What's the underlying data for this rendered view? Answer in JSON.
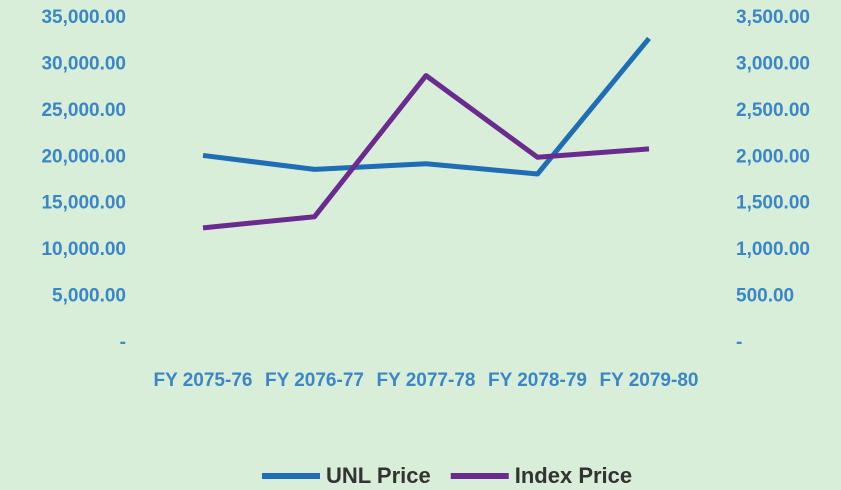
{
  "chart_data": {
    "type": "line",
    "categories": [
      "FY 2075-76",
      "FY 2076-77",
      "FY 2077-78",
      "FY 2078-79",
      "FY 2079-80"
    ],
    "series": [
      {
        "name": "UNL Price",
        "color": "#1f6db4",
        "values": [
          20200,
          18700,
          19300,
          18200,
          32800
        ]
      },
      {
        "name": "Index Price",
        "color": "#6a2a8e",
        "axis": "y2",
        "values": [
          1240,
          1360,
          2880,
          2000,
          2090
        ]
      }
    ],
    "ylim": [
      0,
      35000
    ],
    "yticks": [
      {
        "value": 0,
        "label": "-"
      },
      {
        "value": 5000,
        "label": "5,000.00"
      },
      {
        "value": 10000,
        "label": "10,000.00"
      },
      {
        "value": 15000,
        "label": "15,000.00"
      },
      {
        "value": 20000,
        "label": "20,000.00"
      },
      {
        "value": 25000,
        "label": "25,000.00"
      },
      {
        "value": 30000,
        "label": "30,000.00"
      },
      {
        "value": 35000,
        "label": "35,000.00"
      }
    ],
    "y2lim": [
      0,
      3500
    ],
    "y2ticks": [
      {
        "value": 0,
        "label": "-"
      },
      {
        "value": 500,
        "label": "500.00"
      },
      {
        "value": 1000,
        "label": "1,000.00"
      },
      {
        "value": 1500,
        "label": "1,500.00"
      },
      {
        "value": 2000,
        "label": "2,000.00"
      },
      {
        "value": 2500,
        "label": "2,500.00"
      },
      {
        "value": 3000,
        "label": "3,000.00"
      },
      {
        "value": 3500,
        "label": "3,500.00"
      }
    ],
    "grid": false,
    "legend": "bottom"
  }
}
